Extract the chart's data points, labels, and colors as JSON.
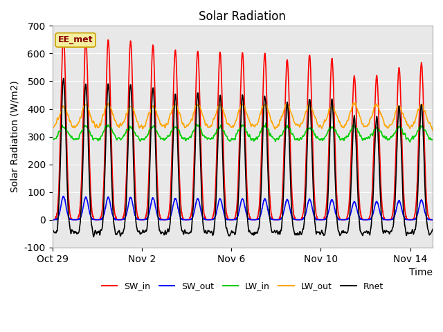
{
  "title": "Solar Radiation",
  "ylabel": "Solar Radiation (W/m2)",
  "xlabel": "Time",
  "ylim": [
    -100,
    700
  ],
  "yticks": [
    -100,
    0,
    100,
    200,
    300,
    400,
    500,
    600,
    700
  ],
  "xtick_labels": [
    "Oct 29",
    "Nov 2",
    "Nov 6",
    "Nov 10",
    "Nov 14"
  ],
  "xtick_days": [
    0,
    4,
    8,
    12,
    16
  ],
  "annotation": "EE_met",
  "bg_color": "#e8e8e8",
  "fig_color": "#ffffff",
  "legend": [
    {
      "label": "SW_in",
      "color": "#ff0000",
      "lw": 1.2
    },
    {
      "label": "SW_out",
      "color": "#0000ff",
      "lw": 1.2
    },
    {
      "label": "LW_in",
      "color": "#00cc00",
      "lw": 1.2
    },
    {
      "label": "LW_out",
      "color": "#ffa500",
      "lw": 1.2
    },
    {
      "label": "Rnet",
      "color": "#000000",
      "lw": 1.2
    }
  ],
  "sw_in_peaks": [
    670,
    650,
    648,
    645,
    630,
    612,
    610,
    605,
    605,
    600,
    578,
    595,
    580,
    520,
    520,
    548,
    565
  ],
  "n_days": 17,
  "pts_per_day": 144
}
